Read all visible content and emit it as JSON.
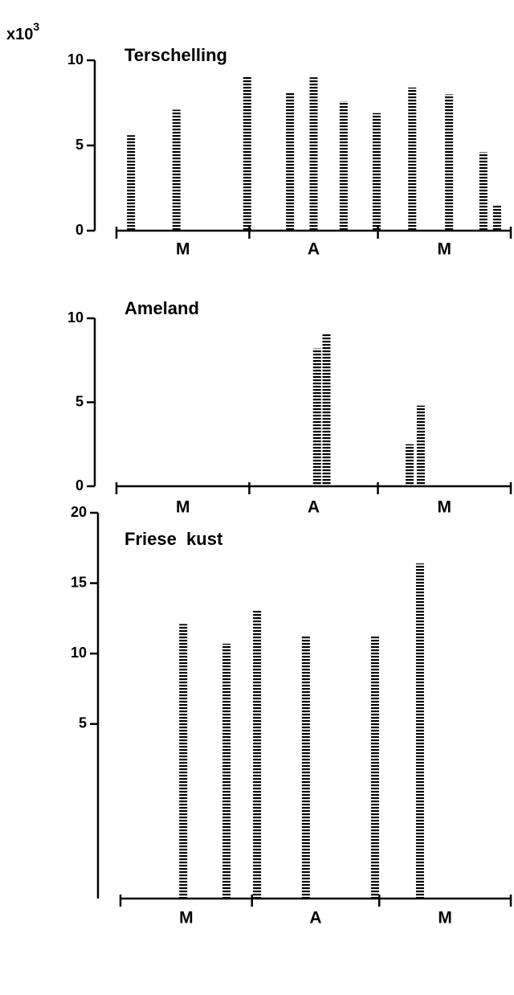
{
  "chart_data": [
    {
      "type": "bar",
      "title": "Terschelling",
      "y_unit": "x10",
      "y_unit_exponent": "3",
      "x": [
        3.4,
        14,
        30.5,
        40.5,
        46,
        53,
        60.7,
        69,
        77.6,
        85.6,
        88.8
      ],
      "values": [
        5.6,
        7.1,
        9.05,
        8.1,
        9.0,
        7.6,
        6.9,
        8.4,
        8.0,
        4.6,
        1.5
      ],
      "xlim": [
        0,
        92
      ],
      "month_boundaries": [
        0,
        31,
        61,
        92
      ],
      "month_labels": [
        "M",
        "A",
        "M"
      ],
      "ylim": [
        0,
        10
      ],
      "yticks": [
        0,
        5,
        10
      ],
      "color": "#000000"
    },
    {
      "type": "bar",
      "title": "Ameland",
      "x": [
        46.8,
        49,
        68.4,
        71
      ],
      "values": [
        8.2,
        9.1,
        2.5,
        4.8
      ],
      "xlim": [
        0,
        92
      ],
      "month_boundaries": [
        0,
        31,
        61,
        92
      ],
      "month_labels": [
        "M",
        "A",
        "M"
      ],
      "ylim": [
        0,
        10
      ],
      "yticks": [
        0,
        5,
        10
      ],
      "color": "#000000"
    },
    {
      "type": "bar",
      "title": "Friese  kust",
      "x": [
        14.8,
        25,
        32.2,
        43.7,
        60,
        70.6
      ],
      "values": [
        12.1,
        10.7,
        13.1,
        11.3,
        11.3,
        16.4
      ],
      "xlim": [
        0,
        92
      ],
      "month_boundaries": [
        0,
        31,
        61,
        92
      ],
      "month_labels": [
        "M",
        "A",
        "M"
      ],
      "ylim": [
        -7.4,
        20
      ],
      "yticks": [
        5,
        10,
        15,
        20
      ],
      "color": "#000000"
    }
  ]
}
